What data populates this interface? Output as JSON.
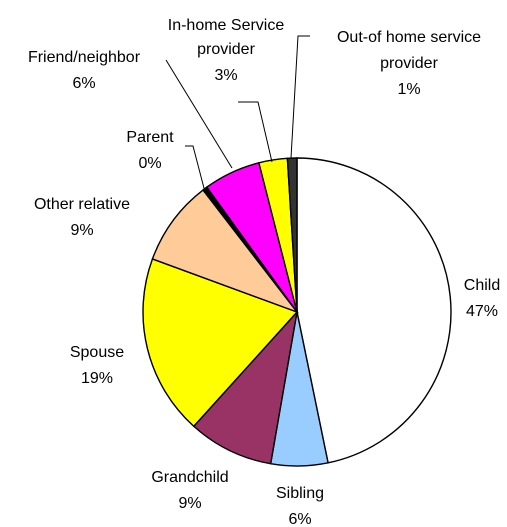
{
  "chart_data": {
    "type": "pie",
    "start_angle_deg": 0,
    "direction": "clockwise",
    "slices": [
      {
        "label": "Child",
        "value": 47,
        "pct_label": "47%",
        "color": "#ffffff"
      },
      {
        "label": "Sibling",
        "value": 6,
        "pct_label": "6%",
        "color": "#99ccff"
      },
      {
        "label": "Grandchild",
        "value": 9,
        "pct_label": "9%",
        "color": "#993366"
      },
      {
        "label": "Spouse",
        "value": 19,
        "pct_label": "19%",
        "color": "#ffff00"
      },
      {
        "label": "Other relative",
        "value": 9,
        "pct_label": "9%",
        "color": "#ffcc99"
      },
      {
        "label": "Parent",
        "value": 0.5,
        "pct_label": "0%",
        "color": "#000000"
      },
      {
        "label": "Friend/neighbor",
        "value": 6,
        "pct_label": "6%",
        "color": "#ff00ff"
      },
      {
        "label": "In-home Service provider",
        "label_lines": [
          "In-home Service",
          "provider"
        ],
        "value": 3,
        "pct_label": "3%",
        "color": "#ffff00"
      },
      {
        "label": "Out-of home service provider",
        "label_lines": [
          "Out-of home service",
          "provider"
        ],
        "value": 1,
        "pct_label": "1%",
        "color": "#333333"
      }
    ]
  }
}
